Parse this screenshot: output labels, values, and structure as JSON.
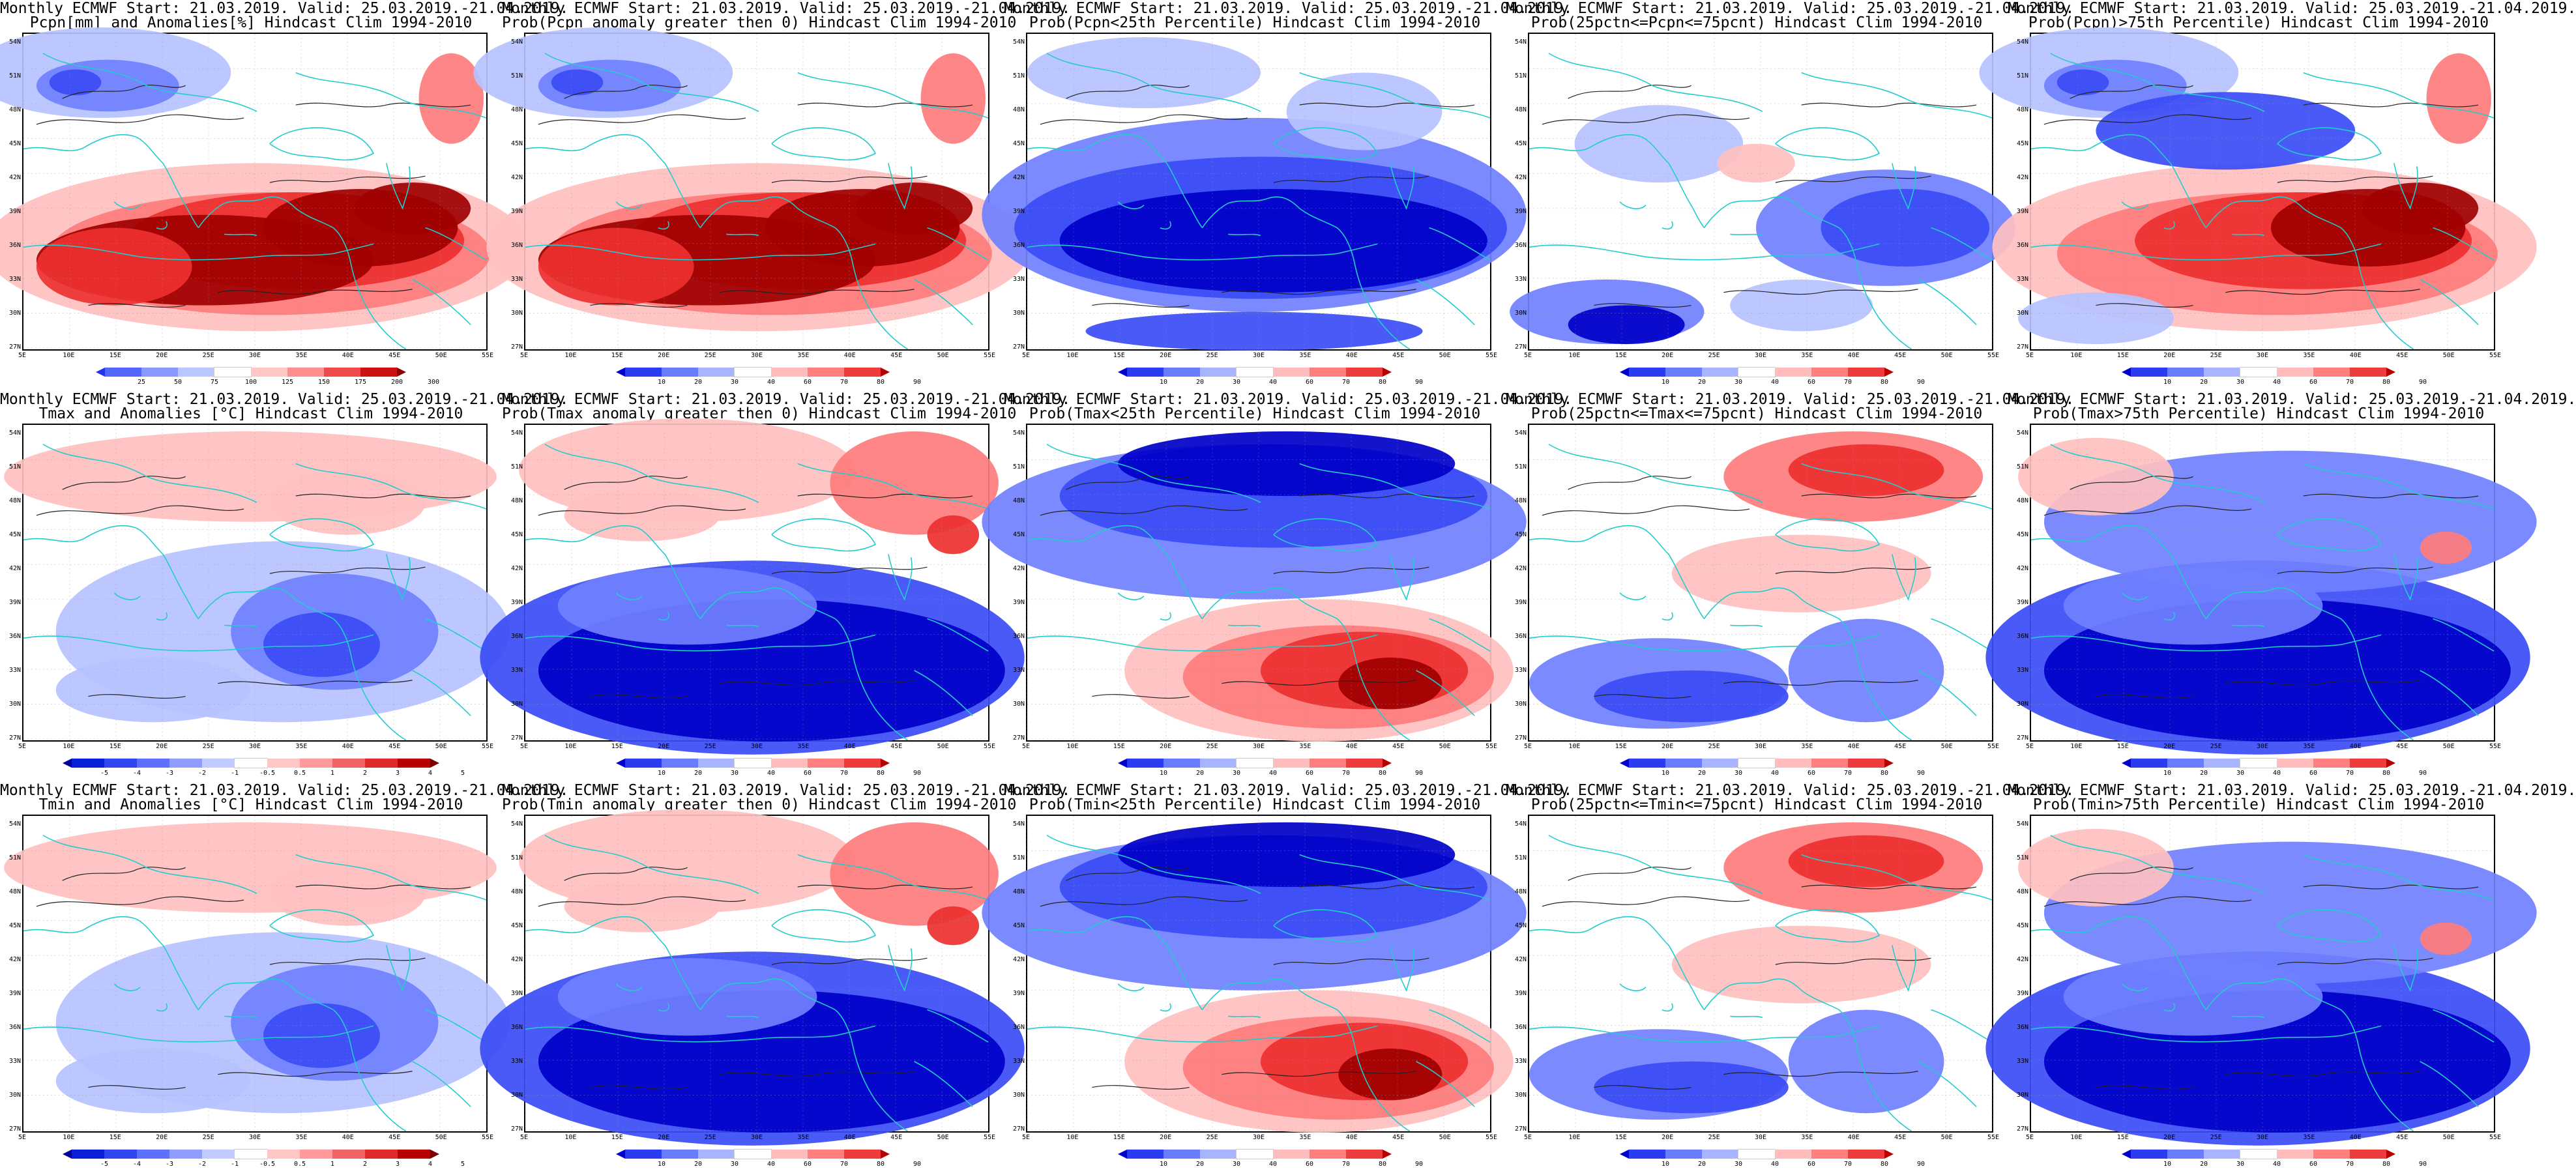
{
  "panels": [
    {
      "t1": "Monthly ECMWF Start: 21.03.2019. Valid: 25.03.2019.-21.04.2019.",
      "t2": "Pcpn[mm] and Anomalies[%] Hindcast Clim 1994-2010",
      "scale": "pcpn",
      "mode": "wet-anom"
    },
    {
      "t1": "Monthly ECMWF Start: 21.03.2019. Valid: 25.03.2019.-21.04.2019.",
      "t2": "Prob(Pcpn anomaly greater then 0) Hindcast Clim 1994-2010",
      "scale": "prob",
      "mode": "wet-anom"
    },
    {
      "t1": "Monthly ECMWF Start: 21.03.2019. Valid: 25.03.2019.-21.04.2019.",
      "t2": "Prob(Pcpn<25th Percentile) Hindcast Clim 1994-2010",
      "scale": "prob",
      "mode": "wet-low"
    },
    {
      "t1": "Monthly ECMWF Start: 21.03.2019. Valid: 25.03.2019.-21.04.2019.",
      "t2": "Prob(25pctn<=Pcpn<=75pcnt) Hindcast Clim 1994-2010",
      "scale": "prob",
      "mode": "wet-mid"
    },
    {
      "t1": "Monthly ECMWF Start: 21.03.2019. Valid: 25.03.2019.-21.04.2019.",
      "t2": "Prob(Pcpn)>75th Percentile) Hindcast Clim 1994-2010",
      "scale": "prob",
      "mode": "wet-high"
    },
    {
      "t1": "Monthly ECMWF Start: 21.03.2019. Valid: 25.03.2019.-21.04.2019.",
      "t2": "Tmax and Anomalies [°C] Hindcast Clim 1994-2010",
      "scale": "temp",
      "mode": "t-anom"
    },
    {
      "t1": "Monthly ECMWF Start: 21.03.2019. Valid: 25.03.2019.-21.04.2019.",
      "t2": "Prob(Tmax anomaly greater then 0) Hindcast Clim 1994-2010",
      "scale": "prob",
      "mode": "t-prob"
    },
    {
      "t1": "Monthly ECMWF Start: 21.03.2019. Valid: 25.03.2019.-21.04.2019.",
      "t2": "Prob(Tmax<25th Percentile) Hindcast Clim 1994-2010",
      "scale": "prob",
      "mode": "t-low"
    },
    {
      "t1": "Monthly ECMWF Start: 21.03.2019. Valid: 25.03.2019.-21.04.2019.",
      "t2": "Prob(25pctn<=Tmax<=75pcnt) Hindcast Clim 1994-2010",
      "scale": "prob",
      "mode": "t-mid"
    },
    {
      "t1": "Monthly ECMWF Start: 21.03.2019. Valid: 25.03.2019.-21.04.2019.",
      "t2": "Prob(Tmax>75th Percentile) Hindcast Clim 1994-2010",
      "scale": "prob",
      "mode": "t-high"
    },
    {
      "t1": "Monthly ECMWF Start: 21.03.2019. Valid: 25.03.2019.-21.04.2019.",
      "t2": "Tmin and Anomalies [°C] Hindcast Clim 1994-2010",
      "scale": "temp",
      "mode": "n-anom"
    },
    {
      "t1": "Monthly ECMWF Start: 21.03.2019. Valid: 25.03.2019.-21.04.2019.",
      "t2": "Prob(Tmin anomaly greater then 0) Hindcast Clim 1994-2010",
      "scale": "prob",
      "mode": "n-prob"
    },
    {
      "t1": "Monthly ECMWF Start: 21.03.2019. Valid: 25.03.2019.-21.04.2019.",
      "t2": "Prob(Tmin<25th Percentile) Hindcast Clim 1994-2010",
      "scale": "prob",
      "mode": "n-low"
    },
    {
      "t1": "Monthly ECMWF Start: 21.03.2019. Valid: 25.03.2019.-21.04.2019.",
      "t2": "Prob(25pctn<=Tmin<=75pcnt) Hindcast Clim 1994-2010",
      "scale": "prob",
      "mode": "n-mid"
    },
    {
      "t1": "Monthly ECMWF Start: 21.03.2019. Valid: 25.03.2019.-21.04.2019.",
      "t2": "Prob(Tmin>75th Percentile) Hindcast Clim 1994-2010",
      "scale": "prob",
      "mode": "n-high"
    }
  ],
  "lat_labels": [
    "54N",
    "51N",
    "48N",
    "45N",
    "42N",
    "39N",
    "36N",
    "33N",
    "30N",
    "27N"
  ],
  "lon_labels": [
    "5E",
    "10E",
    "15E",
    "20E",
    "25E",
    "30E",
    "35E",
    "40E",
    "45E",
    "50E",
    "55E"
  ],
  "scales": {
    "pcpn": {
      "ticks": [
        "25",
        "50",
        "75",
        "100",
        "125",
        "150",
        "175",
        "200",
        "300"
      ],
      "colors": [
        "#2233ee",
        "#5566ff",
        "#8899ff",
        "#bbc8ff",
        "#ffffff",
        "#ffc6c6",
        "#ff8f8f",
        "#f04a4a",
        "#cc1111",
        "#8b0000"
      ]
    },
    "prob": {
      "ticks": [
        "10",
        "20",
        "30",
        "40",
        "60",
        "70",
        "80",
        "90"
      ],
      "colors": [
        "#0000cc",
        "#2a3cf0",
        "#6a7cff",
        "#a8b4ff",
        "#ffffff",
        "#ffbcbc",
        "#ff7f7f",
        "#ee3b3b",
        "#b80000"
      ]
    },
    "temp": {
      "ticks": [
        "-5",
        "-4",
        "-3",
        "-2",
        "-1",
        "-0.5",
        "0.5",
        "1",
        "2",
        "3",
        "4",
        "5"
      ],
      "colors": [
        "#00009a",
        "#0a1fd8",
        "#3046f0",
        "#5d70ff",
        "#8e9dff",
        "#c2cbff",
        "#ffffff",
        "#ffc6c6",
        "#ff9a9a",
        "#f26464",
        "#df2a2a",
        "#b80000",
        "#7a0000"
      ]
    }
  },
  "palette": {
    "dark_blue": "#0000c8",
    "blue": "#3a4cf5",
    "mid_blue": "#7080ff",
    "light_blue": "#b6c2ff",
    "white": "#ffffff",
    "light_red": "#ffc0c0",
    "mid_red": "#ff7c7c",
    "red": "#ee3030",
    "dark_red": "#a00000",
    "coast": "#22cccc",
    "contour": "#222222"
  }
}
